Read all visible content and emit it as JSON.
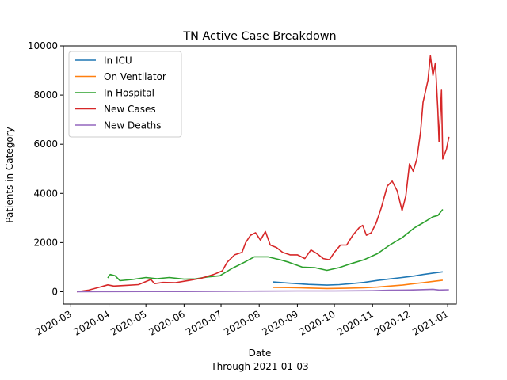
{
  "chart_data": {
    "type": "line",
    "title": "TN Active Case Breakdown",
    "xlabel": "Date",
    "xlabel_sub": "Through 2021-01-03",
    "ylabel": "Patients in Category",
    "x_range": [
      "2020-02-24",
      "2021-01-08"
    ],
    "ylim": [
      -500,
      10000
    ],
    "yticks": [
      0,
      2000,
      4000,
      6000,
      8000,
      10000
    ],
    "xticks": [
      "2020-03",
      "2020-04",
      "2020-05",
      "2020-06",
      "2020-07",
      "2020-08",
      "2020-09",
      "2020-10",
      "2020-11",
      "2020-12",
      "2021-01"
    ],
    "grid": false,
    "legend_position": "top-left",
    "series": [
      {
        "name": "In ICU",
        "color": "#1f77b4",
        "points": [
          [
            "2020-08-12",
            400
          ],
          [
            "2020-08-25",
            350
          ],
          [
            "2020-09-10",
            300
          ],
          [
            "2020-09-25",
            270
          ],
          [
            "2020-10-05",
            290
          ],
          [
            "2020-10-15",
            330
          ],
          [
            "2020-10-25",
            380
          ],
          [
            "2020-11-05",
            460
          ],
          [
            "2020-11-15",
            520
          ],
          [
            "2020-11-25",
            580
          ],
          [
            "2020-12-05",
            640
          ],
          [
            "2020-12-12",
            700
          ],
          [
            "2020-12-20",
            760
          ],
          [
            "2020-12-28",
            810
          ]
        ]
      },
      {
        "name": "On Ventilator",
        "color": "#ff7f0e",
        "points": [
          [
            "2020-08-12",
            180
          ],
          [
            "2020-08-25",
            170
          ],
          [
            "2020-09-10",
            150
          ],
          [
            "2020-09-25",
            130
          ],
          [
            "2020-10-10",
            140
          ],
          [
            "2020-10-25",
            160
          ],
          [
            "2020-11-05",
            190
          ],
          [
            "2020-11-15",
            230
          ],
          [
            "2020-11-25",
            270
          ],
          [
            "2020-12-05",
            330
          ],
          [
            "2020-12-12",
            370
          ],
          [
            "2020-12-20",
            420
          ],
          [
            "2020-12-28",
            470
          ]
        ]
      },
      {
        "name": "In Hospital",
        "color": "#2ca02c",
        "points": [
          [
            "2020-03-31",
            560
          ],
          [
            "2020-04-02",
            700
          ],
          [
            "2020-04-06",
            650
          ],
          [
            "2020-04-10",
            450
          ],
          [
            "2020-04-20",
            500
          ],
          [
            "2020-05-01",
            580
          ],
          [
            "2020-05-10",
            530
          ],
          [
            "2020-05-20",
            580
          ],
          [
            "2020-06-01",
            510
          ],
          [
            "2020-06-10",
            520
          ],
          [
            "2020-06-20",
            600
          ],
          [
            "2020-06-30",
            650
          ],
          [
            "2020-07-10",
            950
          ],
          [
            "2020-07-20",
            1200
          ],
          [
            "2020-07-28",
            1420
          ],
          [
            "2020-08-08",
            1420
          ],
          [
            "2020-08-18",
            1300
          ],
          [
            "2020-08-25",
            1200
          ],
          [
            "2020-09-05",
            1000
          ],
          [
            "2020-09-15",
            980
          ],
          [
            "2020-09-25",
            870
          ],
          [
            "2020-10-05",
            980
          ],
          [
            "2020-10-15",
            1150
          ],
          [
            "2020-10-25",
            1300
          ],
          [
            "2020-11-05",
            1550
          ],
          [
            "2020-11-15",
            1900
          ],
          [
            "2020-11-25",
            2200
          ],
          [
            "2020-12-05",
            2600
          ],
          [
            "2020-12-12",
            2800
          ],
          [
            "2020-12-20",
            3050
          ],
          [
            "2020-12-24",
            3100
          ],
          [
            "2020-12-28",
            3350
          ]
        ]
      },
      {
        "name": "New Cases",
        "color": "#d62728",
        "points": [
          [
            "2020-03-06",
            0
          ],
          [
            "2020-03-15",
            60
          ],
          [
            "2020-03-24",
            180
          ],
          [
            "2020-03-31",
            280
          ],
          [
            "2020-04-05",
            230
          ],
          [
            "2020-04-15",
            260
          ],
          [
            "2020-04-25",
            290
          ],
          [
            "2020-05-05",
            500
          ],
          [
            "2020-05-08",
            330
          ],
          [
            "2020-05-15",
            380
          ],
          [
            "2020-05-25",
            370
          ],
          [
            "2020-06-05",
            460
          ],
          [
            "2020-06-15",
            550
          ],
          [
            "2020-06-25",
            700
          ],
          [
            "2020-07-02",
            850
          ],
          [
            "2020-07-06",
            1200
          ],
          [
            "2020-07-12",
            1500
          ],
          [
            "2020-07-18",
            1600
          ],
          [
            "2020-07-21",
            2000
          ],
          [
            "2020-07-25",
            2300
          ],
          [
            "2020-07-29",
            2400
          ],
          [
            "2020-08-02",
            2100
          ],
          [
            "2020-08-06",
            2450
          ],
          [
            "2020-08-10",
            1900
          ],
          [
            "2020-08-15",
            1800
          ],
          [
            "2020-08-20",
            1600
          ],
          [
            "2020-08-26",
            1500
          ],
          [
            "2020-09-01",
            1500
          ],
          [
            "2020-09-07",
            1350
          ],
          [
            "2020-09-12",
            1700
          ],
          [
            "2020-09-17",
            1550
          ],
          [
            "2020-09-22",
            1350
          ],
          [
            "2020-09-27",
            1300
          ],
          [
            "2020-10-01",
            1600
          ],
          [
            "2020-10-06",
            1900
          ],
          [
            "2020-10-11",
            1900
          ],
          [
            "2020-10-16",
            2300
          ],
          [
            "2020-10-21",
            2600
          ],
          [
            "2020-10-24",
            2700
          ],
          [
            "2020-10-27",
            2300
          ],
          [
            "2020-10-31",
            2400
          ],
          [
            "2020-11-04",
            2800
          ],
          [
            "2020-11-08",
            3400
          ],
          [
            "2020-11-13",
            4300
          ],
          [
            "2020-11-17",
            4500
          ],
          [
            "2020-11-21",
            4100
          ],
          [
            "2020-11-25",
            3300
          ],
          [
            "2020-11-28",
            3900
          ],
          [
            "2020-12-01",
            5200
          ],
          [
            "2020-12-04",
            4900
          ],
          [
            "2020-12-07",
            5400
          ],
          [
            "2020-12-10",
            6500
          ],
          [
            "2020-12-12",
            7700
          ],
          [
            "2020-12-16",
            8600
          ],
          [
            "2020-12-18",
            9600
          ],
          [
            "2020-12-20",
            8800
          ],
          [
            "2020-12-22",
            9300
          ],
          [
            "2020-12-24",
            7400
          ],
          [
            "2020-12-25",
            6100
          ],
          [
            "2020-12-27",
            8200
          ],
          [
            "2020-12-28",
            5400
          ],
          [
            "2020-12-31",
            5800
          ],
          [
            "2021-01-02",
            6300
          ]
        ]
      },
      {
        "name": "New Deaths",
        "color": "#9467bd",
        "points": [
          [
            "2020-03-06",
            0
          ],
          [
            "2020-04-01",
            5
          ],
          [
            "2020-05-01",
            10
          ],
          [
            "2020-06-01",
            10
          ],
          [
            "2020-07-01",
            15
          ],
          [
            "2020-08-01",
            25
          ],
          [
            "2020-09-01",
            30
          ],
          [
            "2020-10-01",
            30
          ],
          [
            "2020-11-01",
            40
          ],
          [
            "2020-11-15",
            60
          ],
          [
            "2020-12-01",
            70
          ],
          [
            "2020-12-15",
            90
          ],
          [
            "2020-12-20",
            100
          ],
          [
            "2020-12-25",
            70
          ],
          [
            "2021-01-02",
            80
          ]
        ]
      }
    ]
  }
}
